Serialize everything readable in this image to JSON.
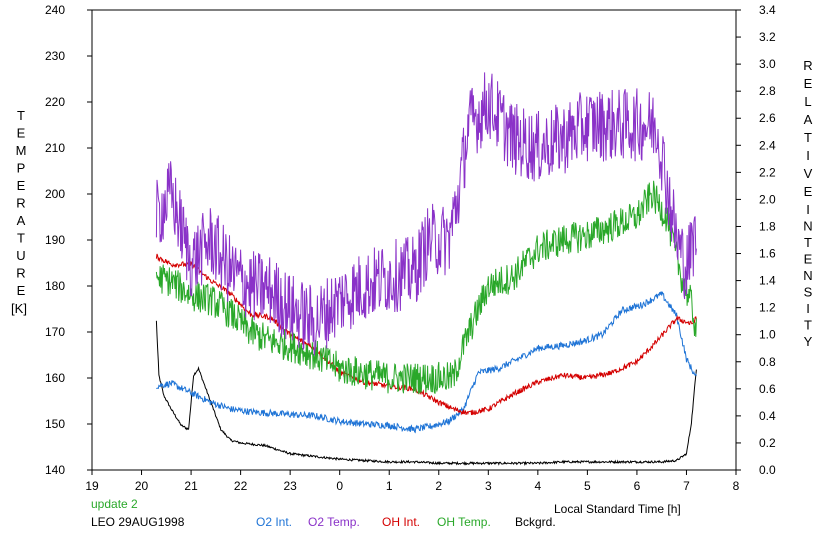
{
  "chart_data": {
    "type": "line",
    "title": "",
    "xlabel": "Local Standard Time [h]",
    "ylabel_left_letters": [
      "T",
      "E",
      "M",
      "P",
      "E",
      "R",
      "A",
      "T",
      "U",
      "R",
      "E"
    ],
    "ylabel_left_unit": "[K]",
    "ylabel_right_letters_1": [
      "R",
      "E",
      "L",
      "A",
      "T",
      "I",
      "V",
      "E"
    ],
    "ylabel_right_letters_2": [
      "I",
      "N",
      "T",
      "E",
      "N",
      "S",
      "I",
      "T",
      "Y"
    ],
    "x_domain": [
      19,
      32
    ],
    "x_tick_values": [
      19,
      20,
      21,
      22,
      23,
      24,
      25,
      26,
      27,
      28,
      29,
      30,
      31,
      32
    ],
    "x_tick_labels": [
      "19",
      "20",
      "21",
      "22",
      "23",
      "0",
      "1",
      "2",
      "3",
      "4",
      "5",
      "6",
      "7",
      "8"
    ],
    "ylim_left": [
      140,
      240
    ],
    "y_left_ticks": [
      140,
      150,
      160,
      170,
      180,
      190,
      200,
      210,
      220,
      230,
      240
    ],
    "ylim_right": [
      0,
      3.4
    ],
    "y_right_ticks": [
      "0.0",
      "0.2",
      "0.4",
      "0.6",
      "0.8",
      "1.0",
      "1.2",
      "1.4",
      "1.6",
      "1.8",
      "2.0",
      "2.2",
      "2.4",
      "2.6",
      "2.8",
      "3.0",
      "3.2",
      "3.4"
    ],
    "grid": false,
    "legend_position": "bottom",
    "annotation": "update 2",
    "station": "LEO 29AUG1998",
    "series": [
      {
        "name": "O2 Int.",
        "axis": "right",
        "color": "#1f74d6",
        "noise": 0.025,
        "x": [
          20.3,
          20.6,
          21.0,
          21.4,
          21.8,
          22.2,
          22.6,
          23.0,
          23.5,
          24.0,
          24.5,
          25.0,
          25.5,
          25.8,
          26.2,
          26.5,
          26.8,
          27.2,
          27.6,
          28.0,
          28.5,
          28.9,
          29.3,
          29.7,
          30.1,
          30.5,
          30.8,
          31.0,
          31.2
        ],
        "y": [
          0.62,
          0.64,
          0.57,
          0.5,
          0.45,
          0.43,
          0.42,
          0.41,
          0.4,
          0.36,
          0.34,
          0.33,
          0.3,
          0.32,
          0.36,
          0.45,
          0.72,
          0.75,
          0.82,
          0.9,
          0.92,
          0.95,
          1.0,
          1.18,
          1.22,
          1.3,
          1.14,
          0.82,
          0.68
        ]
      },
      {
        "name": "O2 Temp.",
        "axis": "left",
        "color": "#8a32c8",
        "noise": 8,
        "x": [
          20.3,
          20.6,
          21.0,
          21.4,
          21.8,
          22.2,
          22.6,
          23.0,
          23.5,
          24.0,
          24.5,
          25.0,
          25.5,
          25.8,
          26.2,
          26.4,
          26.6,
          26.8,
          27.0,
          27.5,
          28.0,
          28.5,
          29.0,
          29.5,
          30.0,
          30.4,
          30.8,
          31.0,
          31.2
        ],
        "y": [
          195,
          200,
          185,
          190,
          183,
          180,
          179,
          175,
          172,
          177,
          180,
          182,
          183,
          190,
          190,
          200,
          215,
          217,
          220,
          212,
          210,
          212,
          215,
          215,
          215,
          215,
          190,
          184,
          192
        ]
      },
      {
        "name": "OH Int.",
        "axis": "right",
        "color": "#d40000",
        "noise": 0.02,
        "x": [
          20.3,
          20.6,
          21.0,
          21.4,
          21.8,
          22.2,
          22.6,
          23.0,
          23.5,
          24.0,
          24.5,
          25.0,
          25.5,
          26.0,
          26.3,
          26.6,
          27.0,
          27.5,
          28.0,
          28.5,
          29.0,
          29.5,
          30.0,
          30.4,
          30.8,
          31.1,
          31.2
        ],
        "y": [
          1.58,
          1.52,
          1.52,
          1.4,
          1.3,
          1.15,
          1.13,
          1.0,
          0.9,
          0.72,
          0.65,
          0.62,
          0.6,
          0.5,
          0.45,
          0.42,
          0.45,
          0.56,
          0.65,
          0.7,
          0.68,
          0.72,
          0.8,
          0.95,
          1.12,
          1.08,
          1.12
        ]
      },
      {
        "name": "OH Temp.",
        "axis": "left",
        "color": "#2aa82a",
        "noise": 3.5,
        "x": [
          20.3,
          20.6,
          21.0,
          21.4,
          21.8,
          22.2,
          22.6,
          23.0,
          23.5,
          24.0,
          24.5,
          25.0,
          25.5,
          26.0,
          26.3,
          26.5,
          26.8,
          27.0,
          27.5,
          28.0,
          28.5,
          29.0,
          29.5,
          30.0,
          30.3,
          30.6,
          30.9,
          31.1,
          31.2
        ],
        "y": [
          182,
          181,
          178,
          177,
          174,
          170,
          168,
          167,
          165,
          162,
          161,
          160,
          160,
          160,
          160,
          167,
          175,
          180,
          182,
          188,
          190,
          191,
          193,
          195,
          200,
          195,
          182,
          176,
          170
        ]
      },
      {
        "name": "Bckgrd.",
        "axis": "right",
        "color": "#000000",
        "noise": 0.008,
        "x": [
          20.3,
          20.35,
          20.45,
          20.6,
          20.8,
          20.95,
          21.05,
          21.15,
          21.3,
          21.45,
          21.6,
          21.8,
          22.0,
          22.5,
          23.0,
          23.5,
          24.0,
          24.5,
          25.0,
          25.5,
          26.0,
          26.5,
          27.0,
          27.5,
          28.0,
          28.5,
          29.0,
          29.5,
          30.0,
          30.5,
          30.8,
          31.0,
          31.1,
          31.2
        ],
        "y": [
          1.1,
          0.7,
          0.55,
          0.45,
          0.33,
          0.3,
          0.7,
          0.75,
          0.6,
          0.45,
          0.3,
          0.22,
          0.2,
          0.18,
          0.12,
          0.1,
          0.08,
          0.07,
          0.06,
          0.06,
          0.05,
          0.05,
          0.05,
          0.05,
          0.05,
          0.06,
          0.06,
          0.06,
          0.06,
          0.06,
          0.07,
          0.12,
          0.35,
          0.75
        ]
      }
    ]
  }
}
